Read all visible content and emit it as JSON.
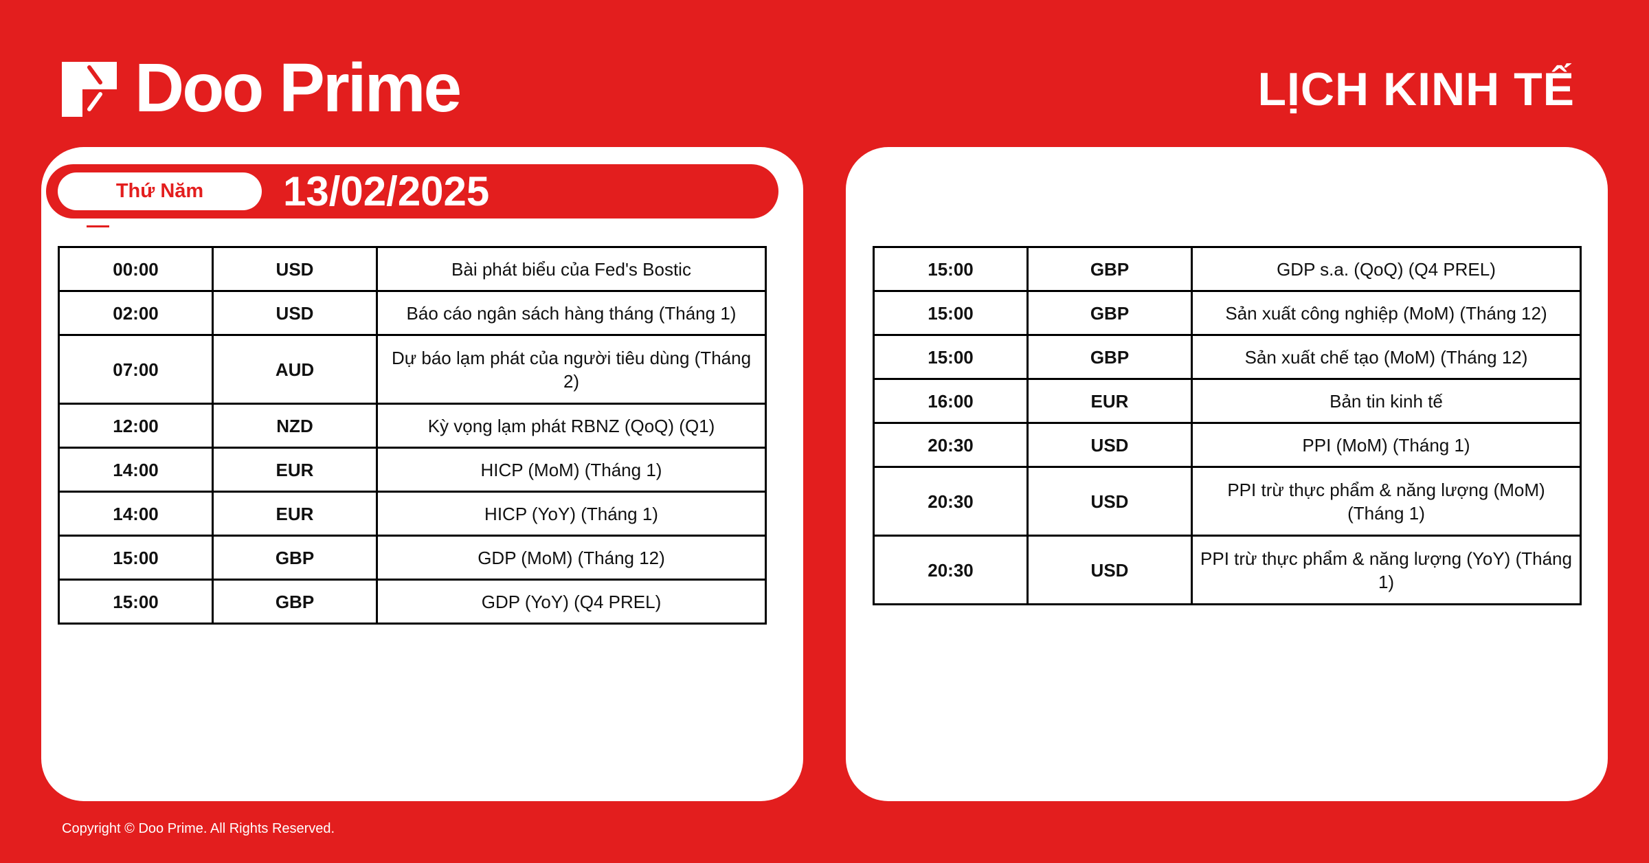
{
  "brand": {
    "name": "Doo Prime",
    "logo_icon": "doo-prime-logo-icon"
  },
  "header": {
    "title": "LỊCH KINH TẾ"
  },
  "date": {
    "weekday": "Thứ Năm",
    "date": "13/02/2025"
  },
  "colors": {
    "brand_red": "#e31e1e",
    "card": "#ffffff",
    "text": "#111111"
  },
  "left_table": [
    {
      "time": "00:00",
      "currency": "USD",
      "event": "Bài phát biểu của Fed's Bostic"
    },
    {
      "time": "02:00",
      "currency": "USD",
      "event": "Báo cáo ngân sách hàng tháng (Tháng 1)"
    },
    {
      "time": "07:00",
      "currency": "AUD",
      "event": "Dự báo lạm phát của người tiêu dùng (Tháng 2)"
    },
    {
      "time": "12:00",
      "currency": "NZD",
      "event": "Kỳ vọng lạm phát RBNZ (QoQ) (Q1)"
    },
    {
      "time": "14:00",
      "currency": "EUR",
      "event": "HICP (MoM) (Tháng 1)"
    },
    {
      "time": "14:00",
      "currency": "EUR",
      "event": "HICP (YoY) (Tháng 1)"
    },
    {
      "time": "15:00",
      "currency": "GBP",
      "event": "GDP (MoM) (Tháng 12)"
    },
    {
      "time": "15:00",
      "currency": "GBP",
      "event": "GDP (YoY) (Q4 PREL)"
    }
  ],
  "right_table": [
    {
      "time": "15:00",
      "currency": "GBP",
      "event": "GDP s.a. (QoQ) (Q4 PREL)"
    },
    {
      "time": "15:00",
      "currency": "GBP",
      "event": "Sản xuất công nghiệp (MoM) (Tháng 12)"
    },
    {
      "time": "15:00",
      "currency": "GBP",
      "event": "Sản xuất chế tạo (MoM) (Tháng 12)"
    },
    {
      "time": "16:00",
      "currency": "EUR",
      "event": "Bản tin kinh tế"
    },
    {
      "time": "20:30",
      "currency": "USD",
      "event": "PPI (MoM) (Tháng 1)"
    },
    {
      "time": "20:30",
      "currency": "USD",
      "event": "PPI trừ thực phẩm & năng lượng (MoM) (Tháng 1)"
    },
    {
      "time": "20:30",
      "currency": "USD",
      "event": "PPI trừ thực phẩm & năng lượng (YoY) (Tháng 1)"
    }
  ],
  "footer": {
    "copyright": "Copyright © Doo Prime. All Rights Reserved."
  }
}
